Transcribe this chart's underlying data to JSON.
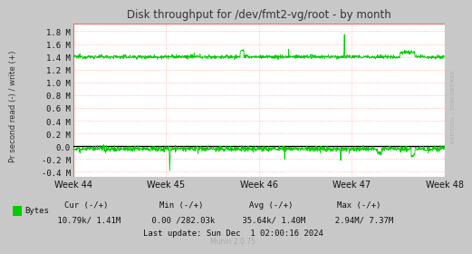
{
  "title": "Disk throughput for /dev/fmt2-vg/root - by month",
  "ylabel": "Pr second read (-) / write (+)",
  "yticks": [
    -0.4,
    -0.2,
    0.0,
    0.2,
    0.4,
    0.6,
    0.8,
    1.0,
    1.2,
    1.4,
    1.6,
    1.8
  ],
  "ytick_labels": [
    "-0.4 M",
    "-0.2 M",
    "0.0",
    "0.2 M",
    "0.4 M",
    "0.6 M",
    "0.8 M",
    "1.0 M",
    "1.2 M",
    "1.4 M",
    "1.6 M",
    "1.8 M"
  ],
  "ylim": [
    -0.48,
    1.92
  ],
  "xtick_labels": [
    "Week 44",
    "Week 45",
    "Week 46",
    "Week 47",
    "Week 48"
  ],
  "bg_color": "#c8c8c8",
  "plot_bg_color": "#ffffff",
  "grid_color": "#e07070",
  "grid_color_dot": "#ffaaaa",
  "line_color": "#00cc00",
  "zero_line_color": "#000000",
  "legend_color": "#00cc00",
  "cur_neg": "10.79k",
  "cur_pos": "1.41M",
  "min_neg": "0.00",
  "min_pos": "282.03k",
  "avg_neg": "35.64k",
  "avg_pos": "1.40M",
  "max_neg": "2.94M",
  "max_pos": "7.37M",
  "last_update": "Last update: Sun Dec  1 02:00:16 2024",
  "munin_version": "Munin 2.0.75",
  "rrdtool_label": "RRDTOOL / TOBI OETIKER",
  "n_points": 1200
}
